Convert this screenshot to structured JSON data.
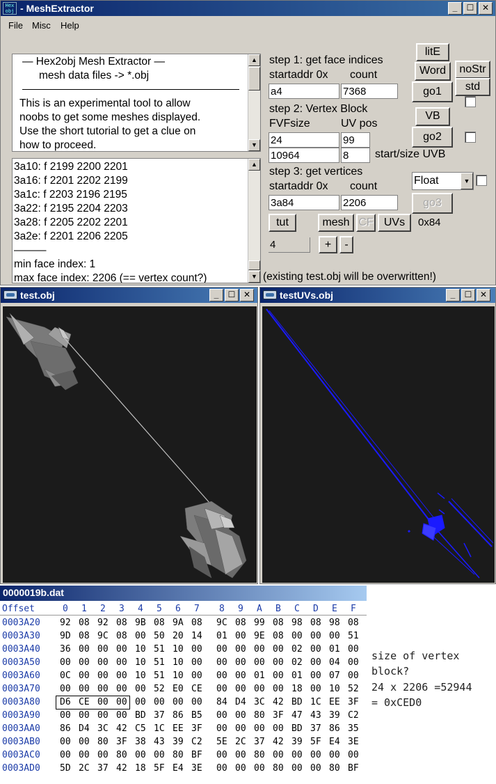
{
  "main_window": {
    "title": "MeshExtractor",
    "app_icon_text": "Hex obj",
    "menu": [
      "File",
      "Misc",
      "Help"
    ],
    "info_text": {
      "heading": "—   Hex2obj Mesh Extractor   —",
      "subheading": "mesh data files -> *.obj",
      "separator": "———————————————",
      "body": [
        "This is an experimental tool to allow",
        "noobs to get some meshes displayed.",
        "Use the short tutorial to get a clue on",
        "how to proceed."
      ]
    },
    "face_list": {
      "lines": [
        "3a10: f  2199 2200 2201",
        "3a16: f  2201 2202 2199",
        "3a1c: f  2203 2196 2195",
        "3a22: f  2195 2204 2203",
        "3a28: f  2205 2202 2201",
        "3a2e: f  2201 2206 2205"
      ],
      "separator": "———",
      "min_face": "min face index: 1",
      "max_face": "max face index: 2206 (== vertex count?)"
    },
    "step1": {
      "title": "step 1: get face indices",
      "addr_label": "startaddr 0x",
      "count_label": "count",
      "addr_value": "a4",
      "count_value": "7368"
    },
    "step2": {
      "title": "step 2: Vertex Block",
      "fvf_label": "FVFsize",
      "uv_label": "UV pos",
      "fvf_value": "24",
      "uv_value": "99",
      "uvb_start": "10964",
      "uvb_size": "8",
      "uvb_label": "start/size UVB"
    },
    "step3": {
      "title": "step 3: get vertices",
      "addr_label": "startaddr 0x",
      "count_label": "count",
      "addr_value": "3a84",
      "count_value": "2206"
    },
    "buttons": {
      "lite": "litE",
      "word": "Word",
      "nostr": "noStr",
      "go1": "go1",
      "std": "std",
      "vb": "VB",
      "go2": "go2",
      "go3": "go3",
      "tut": "tut",
      "mesh": "mesh",
      "cf": "CF",
      "uvs": "UVs",
      "plus": "+",
      "minus": "-"
    },
    "type_select": "Float",
    "vertex_hex": "0x84",
    "step_value": "4",
    "status": "(existing test.obj will be overwritten!)"
  },
  "mesh_window": {
    "title": "test.obj"
  },
  "uv_window": {
    "title": "testUVs.obj"
  },
  "hex_view": {
    "filename": "0000019b.dat",
    "offset_header": "Offset",
    "column_headers": [
      "0",
      "1",
      "2",
      "3",
      "4",
      "5",
      "6",
      "7",
      "8",
      "9",
      "A",
      "B",
      "C",
      "D",
      "E",
      "F"
    ],
    "rows": [
      {
        "offset": "0003A20",
        "bytes": [
          "92",
          "08",
          "92",
          "08",
          "9B",
          "08",
          "9A",
          "08",
          "9C",
          "08",
          "99",
          "08",
          "98",
          "08",
          "98",
          "08"
        ]
      },
      {
        "offset": "0003A30",
        "bytes": [
          "9D",
          "08",
          "9C",
          "08",
          "00",
          "50",
          "20",
          "14",
          "01",
          "00",
          "9E",
          "08",
          "00",
          "00",
          "00",
          "51"
        ]
      },
      {
        "offset": "0003A40",
        "bytes": [
          "36",
          "00",
          "00",
          "00",
          "10",
          "51",
          "10",
          "00",
          "00",
          "00",
          "00",
          "00",
          "02",
          "00",
          "01",
          "00"
        ]
      },
      {
        "offset": "0003A50",
        "bytes": [
          "00",
          "00",
          "00",
          "00",
          "10",
          "51",
          "10",
          "00",
          "00",
          "00",
          "00",
          "00",
          "02",
          "00",
          "04",
          "00"
        ]
      },
      {
        "offset": "0003A60",
        "bytes": [
          "0C",
          "00",
          "00",
          "00",
          "10",
          "51",
          "10",
          "00",
          "00",
          "00",
          "01",
          "00",
          "01",
          "00",
          "07",
          "00"
        ]
      },
      {
        "offset": "0003A70",
        "bytes": [
          "00",
          "00",
          "00",
          "00",
          "00",
          "52",
          "E0",
          "CE",
          "00",
          "00",
          "00",
          "00",
          "18",
          "00",
          "10",
          "52"
        ]
      },
      {
        "offset": "0003A80",
        "bytes": [
          "D6",
          "CE",
          "00",
          "00",
          "00",
          "00",
          "00",
          "00",
          "84",
          "D4",
          "3C",
          "42",
          "BD",
          "1C",
          "EE",
          "3F"
        ]
      },
      {
        "offset": "0003A90",
        "bytes": [
          "00",
          "00",
          "00",
          "00",
          "BD",
          "37",
          "86",
          "B5",
          "00",
          "00",
          "80",
          "3F",
          "47",
          "43",
          "39",
          "C2"
        ]
      },
      {
        "offset": "0003AA0",
        "bytes": [
          "86",
          "D4",
          "3C",
          "42",
          "C5",
          "1C",
          "EE",
          "3F",
          "00",
          "00",
          "00",
          "00",
          "BD",
          "37",
          "86",
          "35"
        ]
      },
      {
        "offset": "0003AB0",
        "bytes": [
          "00",
          "00",
          "80",
          "3F",
          "38",
          "43",
          "39",
          "C2",
          "5E",
          "2C",
          "37",
          "42",
          "39",
          "5F",
          "E4",
          "3E"
        ]
      },
      {
        "offset": "0003AC0",
        "bytes": [
          "00",
          "00",
          "00",
          "80",
          "00",
          "00",
          "80",
          "BF",
          "00",
          "00",
          "80",
          "00",
          "00",
          "00",
          "00",
          "00"
        ]
      },
      {
        "offset": "0003AD0",
        "bytes": [
          "5D",
          "2C",
          "37",
          "42",
          "18",
          "5F",
          "E4",
          "3E",
          "00",
          "00",
          "00",
          "80",
          "00",
          "00",
          "80",
          "BF"
        ]
      }
    ]
  },
  "note": {
    "line1": "size of vertex",
    "line2": "block?",
    "line3": "24 x 2206 =52944",
    "line4": "= 0xCED0"
  },
  "colors": {
    "titlebar": "#0a246a",
    "window": "#d4d0c8",
    "canvas": "#1b1b1b",
    "uv_lines": "#1a1aff",
    "hex_offset": "#1c3ca8"
  },
  "icons": [
    "minimize-icon",
    "maximize-icon",
    "close-icon",
    "scroll-up-icon",
    "scroll-down-icon",
    "dropdown-arrow-icon"
  ]
}
